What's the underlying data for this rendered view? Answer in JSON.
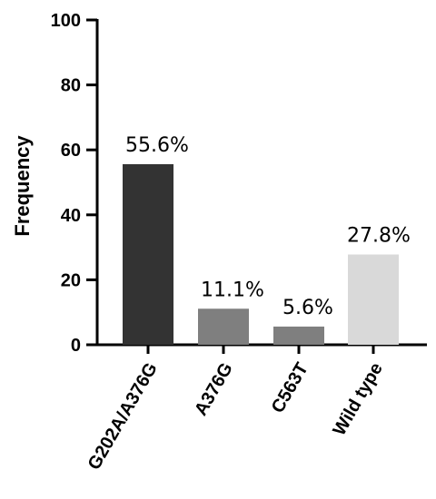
{
  "chart_data": {
    "type": "bar",
    "categories": [
      "G202A/A376G",
      "A376G",
      "C563T",
      "Wild type"
    ],
    "values": [
      55.6,
      11.1,
      5.6,
      27.8
    ],
    "data_labels": [
      "55.6%",
      "11.1%",
      "5.6%",
      "27.8%"
    ],
    "colors": [
      "#333333",
      "#7f7f7f",
      "#7f7f7f",
      "#d9d9d9"
    ],
    "ylabel": "Frequency",
    "xlabel": "",
    "ylim": [
      0,
      100
    ],
    "yticks": [
      0,
      20,
      40,
      60,
      80,
      100
    ],
    "grid": false,
    "legend": "none"
  }
}
